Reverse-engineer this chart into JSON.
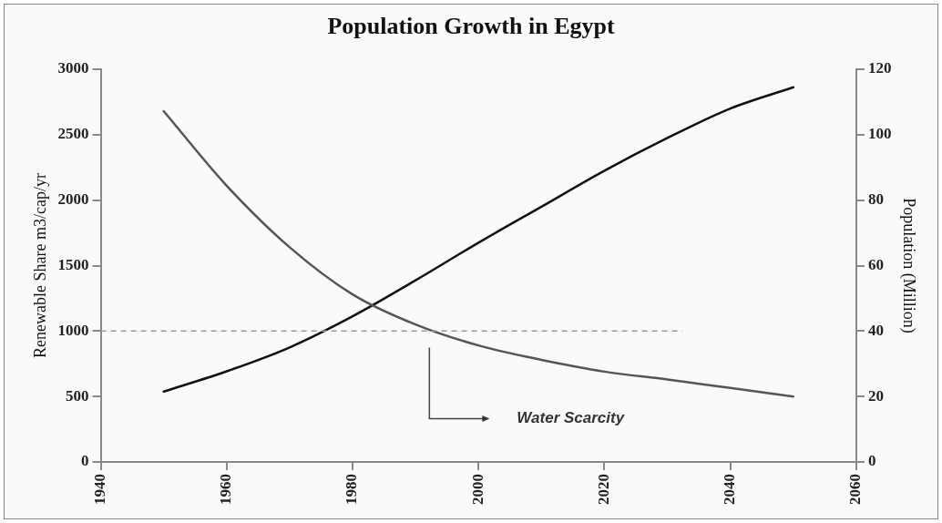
{
  "chart_data": {
    "type": "line",
    "title": "Population Growth in Egypt",
    "ylabel": "Renewable Share m3/cap/yr",
    "y2label": "Population (Million)",
    "x": [
      1950,
      1960,
      1970,
      1980,
      1990,
      2000,
      2010,
      2020,
      2030,
      2040,
      2050
    ],
    "series": [
      {
        "color": "#555555",
        "values": [
          2680,
          2110,
          1640,
          1280,
          1050,
          890,
          780,
          690,
          630,
          565,
          500
        ]
      },
      {
        "color": "#111111",
        "axis": "y2",
        "values": [
          21.5,
          27.7,
          35,
          44.5,
          55.5,
          67,
          78,
          89,
          99,
          108,
          114.5
        ]
      }
    ],
    "xlim": [
      1940,
      2060
    ],
    "xticks": [
      1940,
      1960,
      1980,
      2000,
      2020,
      2040,
      2060
    ],
    "ylim": [
      0,
      3000
    ],
    "yticks": [
      0,
      500,
      1000,
      1500,
      2000,
      2500,
      3000
    ],
    "y2lim": [
      0,
      120
    ],
    "y2ticks": [
      0,
      20,
      40,
      60,
      80,
      100,
      120
    ],
    "ref_lines": [
      {
        "axis": "y",
        "value": 1000,
        "color": "#999999",
        "line_style": "dashed"
      }
    ],
    "annotations": [
      "Water Scarcity"
    ],
    "grid": false,
    "legend": false,
    "marker": "none",
    "line_style": "solid"
  }
}
